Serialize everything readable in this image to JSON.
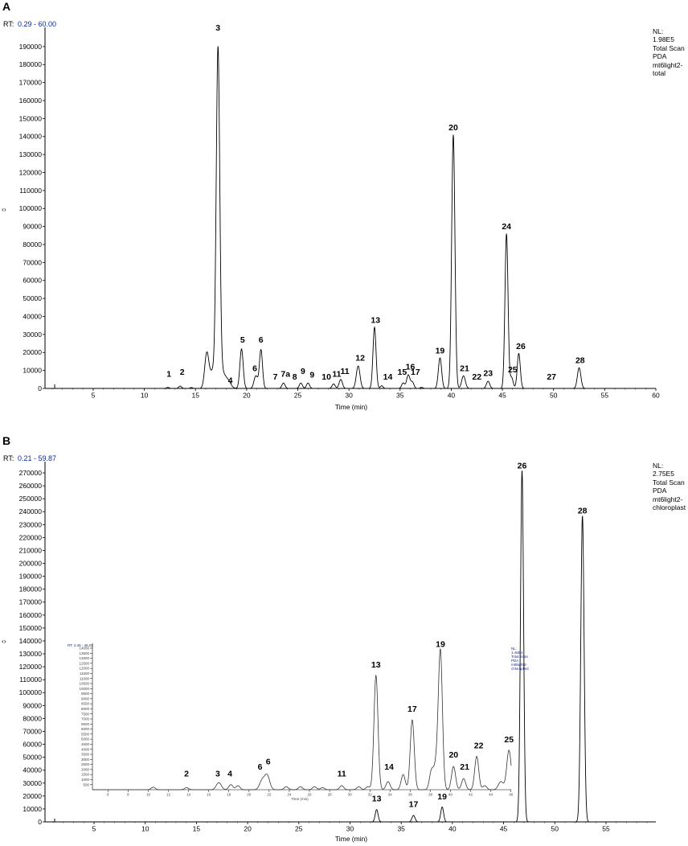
{
  "panels": [
    {
      "letter": "A",
      "rt_prefix": "RT:",
      "rt_range": "0.29 - 60.00",
      "nl_lines": [
        "NL:",
        "1.98E5",
        "Total Scan",
        "PDA",
        "mt6light2-",
        "total"
      ],
      "xlabel": "Time (min)",
      "y_axis_mark": "‹›"
    },
    {
      "letter": "B",
      "rt_prefix": "RT:",
      "rt_range": "0.21 - 59.87",
      "nl_lines": [
        "NL:",
        "2.75E5",
        "Total Scan",
        "PDA",
        "mt6light2-",
        "chloroplast"
      ],
      "xlabel": "Time (min)",
      "y_axis_mark": "‹›"
    }
  ],
  "inset": {
    "rt_text": "RT: 4.46 - 46.02",
    "nl_text": [
      "NL:",
      "1.46E4",
      "Total Scan",
      "PDA",
      "mt6light2-",
      "chloroplast"
    ],
    "xlabel": "Time (min)"
  },
  "chart_data": [
    {
      "type": "line",
      "title": "",
      "xlabel": "Time (min)",
      "ylabel": "",
      "xlim": [
        0.29,
        60.0
      ],
      "ylim": [
        0,
        198000
      ],
      "grid": false,
      "x_ticks": [
        5,
        10,
        15,
        20,
        25,
        30,
        35,
        40,
        45,
        50,
        55,
        60
      ],
      "y_ticks": [
        0,
        10000,
        20000,
        30000,
        40000,
        50000,
        60000,
        70000,
        80000,
        90000,
        100000,
        110000,
        120000,
        130000,
        140000,
        150000,
        160000,
        170000,
        180000,
        190000
      ],
      "peaks": [
        {
          "t": 12.3,
          "h": 600,
          "w": 0.12
        },
        {
          "t": 13.5,
          "h": 1300,
          "w": 0.14
        },
        {
          "t": 14.6,
          "h": 500,
          "w": 0.12
        },
        {
          "t": 16.1,
          "h": 19000,
          "w": 0.2
        },
        {
          "t": 16.7,
          "h": 9000,
          "w": 0.3
        },
        {
          "t": 17.2,
          "h": 182000,
          "w": 0.17
        },
        {
          "t": 17.6,
          "h": 9000,
          "w": 0.45
        },
        {
          "t": 18.3,
          "h": 1500,
          "w": 0.2
        },
        {
          "t": 19.5,
          "h": 22000,
          "w": 0.16
        },
        {
          "t": 20.9,
          "h": 7000,
          "w": 0.18
        },
        {
          "t": 21.4,
          "h": 21500,
          "w": 0.15
        },
        {
          "t": 23.6,
          "h": 3000,
          "w": 0.15
        },
        {
          "t": 25.3,
          "h": 3000,
          "w": 0.15
        },
        {
          "t": 26.0,
          "h": 3000,
          "w": 0.15
        },
        {
          "t": 28.5,
          "h": 2500,
          "w": 0.15
        },
        {
          "t": 29.2,
          "h": 5000,
          "w": 0.16
        },
        {
          "t": 30.9,
          "h": 12500,
          "w": 0.18
        },
        {
          "t": 32.5,
          "h": 34000,
          "w": 0.15
        },
        {
          "t": 33.2,
          "h": 1500,
          "w": 0.13
        },
        {
          "t": 35.3,
          "h": 3000,
          "w": 0.15
        },
        {
          "t": 35.8,
          "h": 7500,
          "w": 0.16
        },
        {
          "t": 36.2,
          "h": 3500,
          "w": 0.15
        },
        {
          "t": 37.1,
          "h": 600,
          "w": 0.13
        },
        {
          "t": 38.9,
          "h": 17000,
          "w": 0.16
        },
        {
          "t": 40.2,
          "h": 141000,
          "w": 0.16
        },
        {
          "t": 41.2,
          "h": 7000,
          "w": 0.18
        },
        {
          "t": 43.6,
          "h": 4000,
          "w": 0.16
        },
        {
          "t": 45.4,
          "h": 86000,
          "w": 0.15
        },
        {
          "t": 45.9,
          "h": 6000,
          "w": 0.15
        },
        {
          "t": 46.6,
          "h": 19500,
          "w": 0.15
        },
        {
          "t": 52.5,
          "h": 11500,
          "w": 0.17
        }
      ],
      "labels": [
        {
          "text": "1",
          "t": 12.4,
          "y": 6500
        },
        {
          "text": "2",
          "t": 13.7,
          "y": 7500
        },
        {
          "text": "3",
          "t": 17.2,
          "y": 199000
        },
        {
          "text": "4",
          "t": 18.4,
          "y": 3000
        },
        {
          "text": "5",
          "t": 19.6,
          "y": 25500
        },
        {
          "text": "6",
          "t": 21.4,
          "y": 25500
        },
        {
          "text": "6",
          "t": 20.8,
          "y": 9500
        },
        {
          "text": "7",
          "t": 22.8,
          "y": 5000
        },
        {
          "text": "7a",
          "t": 23.8,
          "y": 6500
        },
        {
          "text": "8",
          "t": 24.7,
          "y": 5000
        },
        {
          "text": "9",
          "t": 25.5,
          "y": 8000
        },
        {
          "text": "9",
          "t": 26.4,
          "y": 6000
        },
        {
          "text": "10",
          "t": 27.8,
          "y": 5000
        },
        {
          "text": "11",
          "t": 28.8,
          "y": 6500
        },
        {
          "text": "11",
          "t": 29.6,
          "y": 8000
        },
        {
          "text": "12",
          "t": 31.1,
          "y": 15500
        },
        {
          "text": "13",
          "t": 32.6,
          "y": 36500
        },
        {
          "text": "14",
          "t": 33.8,
          "y": 5000
        },
        {
          "text": "15",
          "t": 35.2,
          "y": 7500
        },
        {
          "text": "16",
          "t": 36.0,
          "y": 10500
        },
        {
          "text": "17",
          "t": 36.5,
          "y": 7500
        },
        {
          "text": "19",
          "t": 38.9,
          "y": 19500
        },
        {
          "text": "20",
          "t": 40.2,
          "y": 143500
        },
        {
          "text": "21",
          "t": 41.3,
          "y": 9500
        },
        {
          "text": "22",
          "t": 42.5,
          "y": 5000
        },
        {
          "text": "23",
          "t": 43.6,
          "y": 7000
        },
        {
          "text": "24",
          "t": 45.4,
          "y": 88500
        },
        {
          "text": "25",
          "t": 46.0,
          "y": 9000
        },
        {
          "text": "26",
          "t": 46.8,
          "y": 22000
        },
        {
          "text": "27",
          "t": 49.8,
          "y": 5000
        },
        {
          "text": "28",
          "t": 52.6,
          "y": 14000
        }
      ]
    },
    {
      "type": "line",
      "title": "",
      "xlabel": "Time (min)",
      "ylabel": "",
      "xlim": [
        0.21,
        59.87
      ],
      "ylim": [
        0,
        275000
      ],
      "grid": false,
      "x_ticks": [
        5,
        10,
        15,
        20,
        25,
        30,
        35,
        40,
        45,
        50,
        55
      ],
      "y_ticks": [
        0,
        10000,
        20000,
        30000,
        40000,
        50000,
        60000,
        70000,
        80000,
        90000,
        100000,
        110000,
        120000,
        130000,
        140000,
        150000,
        160000,
        170000,
        180000,
        190000,
        200000,
        210000,
        220000,
        230000,
        240000,
        250000,
        260000,
        270000
      ],
      "peaks": [
        {
          "t": 32.6,
          "h": 9500,
          "w": 0.14
        },
        {
          "t": 36.2,
          "h": 5000,
          "w": 0.15
        },
        {
          "t": 39.0,
          "h": 11500,
          "w": 0.14
        },
        {
          "t": 46.8,
          "h": 272000,
          "w": 0.15
        },
        {
          "t": 52.7,
          "h": 237000,
          "w": 0.16
        }
      ],
      "labels": [
        {
          "text": "26",
          "t": 46.8,
          "y": 273500
        },
        {
          "text": "28",
          "t": 52.7,
          "y": 238500
        },
        {
          "text": "13",
          "t": 32.6,
          "y": 16000
        },
        {
          "text": "17",
          "t": 36.2,
          "y": 11500
        },
        {
          "text": "19",
          "t": 39.0,
          "y": 17500
        }
      ]
    },
    {
      "type": "line",
      "title": "",
      "xlabel": "Time (min)",
      "ylabel": "",
      "xlim": [
        4.46,
        46.02
      ],
      "ylim": [
        0,
        14000
      ],
      "grid": false,
      "x_ticks": [
        6,
        8,
        10,
        12,
        14,
        16,
        18,
        20,
        22,
        24,
        26,
        28,
        30,
        32,
        34,
        36,
        38,
        40,
        42,
        44,
        46
      ],
      "y_ticks": [
        500,
        1000,
        1500,
        2000,
        2500,
        3000,
        3500,
        4000,
        4500,
        5000,
        5500,
        6000,
        6500,
        7000,
        7500,
        8000,
        8500,
        9000,
        9500,
        10000,
        10500,
        11000,
        11500,
        12000,
        12500,
        13000,
        13500,
        14000
      ],
      "peaks": [
        {
          "t": 10.5,
          "h": 250,
          "w": 0.2
        },
        {
          "t": 13.8,
          "h": 200,
          "w": 0.2
        },
        {
          "t": 17.0,
          "h": 700,
          "w": 0.25
        },
        {
          "t": 18.2,
          "h": 500,
          "w": 0.2
        },
        {
          "t": 18.9,
          "h": 400,
          "w": 0.2
        },
        {
          "t": 21.3,
          "h": 900,
          "w": 0.25
        },
        {
          "t": 21.8,
          "h": 1400,
          "w": 0.25
        },
        {
          "t": 23.7,
          "h": 300,
          "w": 0.2
        },
        {
          "t": 25.1,
          "h": 300,
          "w": 0.2
        },
        {
          "t": 26.5,
          "h": 300,
          "w": 0.2
        },
        {
          "t": 27.3,
          "h": 200,
          "w": 0.2
        },
        {
          "t": 29.2,
          "h": 400,
          "w": 0.2
        },
        {
          "t": 30.9,
          "h": 300,
          "w": 0.2
        },
        {
          "t": 31.8,
          "h": 300,
          "w": 0.2
        },
        {
          "t": 32.6,
          "h": 11300,
          "w": 0.2
        },
        {
          "t": 33.8,
          "h": 800,
          "w": 0.2
        },
        {
          "t": 35.3,
          "h": 1500,
          "w": 0.2
        },
        {
          "t": 36.2,
          "h": 6900,
          "w": 0.2
        },
        {
          "t": 38.1,
          "h": 1700,
          "w": 0.2
        },
        {
          "t": 38.6,
          "h": 2500,
          "w": 0.25
        },
        {
          "t": 39.0,
          "h": 13200,
          "w": 0.2
        },
        {
          "t": 40.3,
          "h": 2300,
          "w": 0.2
        },
        {
          "t": 41.3,
          "h": 1100,
          "w": 0.2
        },
        {
          "t": 42.6,
          "h": 3300,
          "w": 0.2
        },
        {
          "t": 43.4,
          "h": 400,
          "w": 0.2
        },
        {
          "t": 45.0,
          "h": 800,
          "w": 0.25
        },
        {
          "t": 45.8,
          "h": 3900,
          "w": 0.22
        }
      ],
      "labels": [
        {
          "text": "2",
          "t": 13.8,
          "y": 1300
        },
        {
          "text": "3",
          "t": 16.9,
          "y": 1300
        },
        {
          "text": "4",
          "t": 18.1,
          "y": 1300
        },
        {
          "text": "6",
          "t": 21.1,
          "y": 2000
        },
        {
          "text": "6",
          "t": 21.9,
          "y": 2500
        },
        {
          "text": "11",
          "t": 29.2,
          "y": 1300
        },
        {
          "text": "13",
          "t": 32.6,
          "y": 12100
        },
        {
          "text": "14",
          "t": 33.9,
          "y": 2000
        },
        {
          "text": "17",
          "t": 36.2,
          "y": 7700
        },
        {
          "text": "19",
          "t": 39.0,
          "y": 14100
        },
        {
          "text": "20",
          "t": 40.3,
          "y": 3200
        },
        {
          "text": "21",
          "t": 41.4,
          "y": 2000
        },
        {
          "text": "22",
          "t": 42.8,
          "y": 4100
        },
        {
          "text": "25",
          "t": 45.8,
          "y": 4700
        }
      ]
    }
  ]
}
